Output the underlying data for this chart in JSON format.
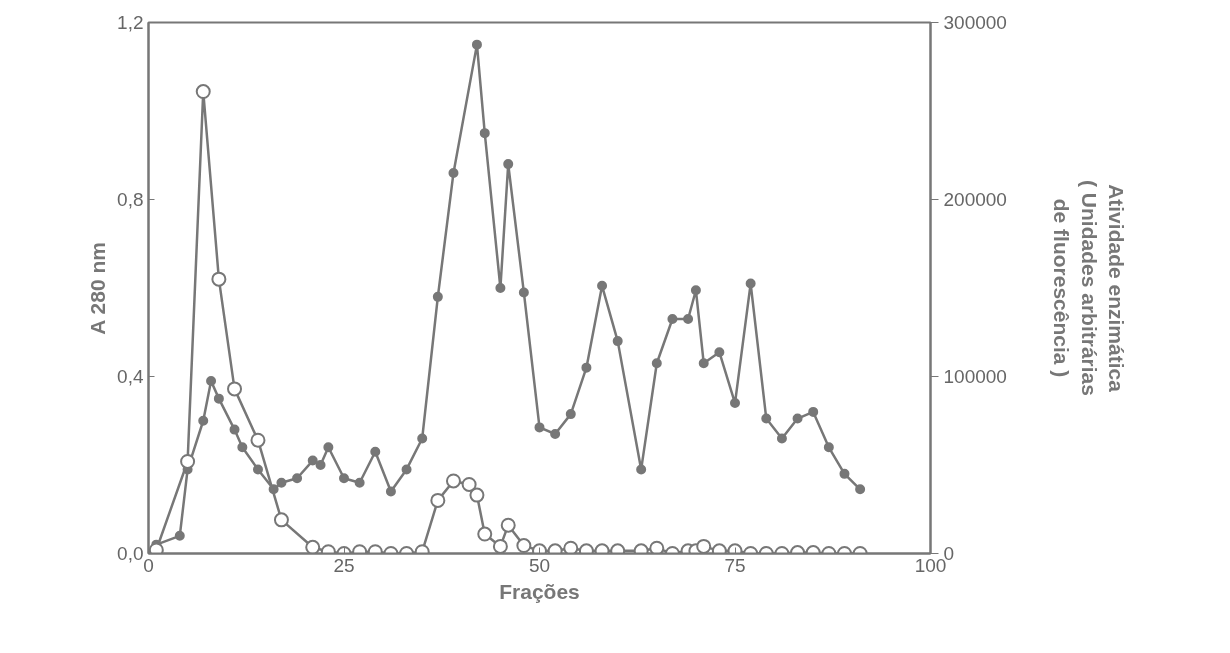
{
  "chart_data": {
    "type": "line",
    "xlabel": "Frações",
    "ylabel": "A 280 nm",
    "y2label": "Atividade enzimática\n( Unidades arbitrárias\nde fluorescência )",
    "xlim": [
      0,
      100
    ],
    "xticks": [
      0,
      25,
      50,
      75,
      100
    ],
    "ylim": [
      0,
      1.2
    ],
    "yticks": [
      {
        "value": 0,
        "label": "0,0"
      },
      {
        "value": 0.4,
        "label": "0,4"
      },
      {
        "value": 0.8,
        "label": "0,8"
      },
      {
        "value": 1.2,
        "label": "1,2"
      }
    ],
    "y2lim": [
      0,
      300000
    ],
    "y2ticks": [
      0,
      100000,
      200000,
      300000
    ],
    "marker": "circle",
    "series": [
      {
        "color": "#777777",
        "x": [
          1,
          4,
          5,
          7,
          8,
          9,
          11,
          12,
          14,
          16,
          17,
          19,
          21,
          22,
          23,
          25,
          27,
          29,
          31,
          33,
          35,
          37,
          39,
          42,
          43,
          45,
          46,
          48,
          50,
          52,
          54,
          56,
          58,
          60,
          63,
          65,
          67,
          69,
          70,
          71,
          73,
          75,
          77,
          79,
          81,
          83,
          85,
          87,
          89,
          91
        ],
        "values": [
          0.02,
          0.04,
          0.19,
          0.3,
          0.39,
          0.35,
          0.28,
          0.24,
          0.19,
          0.145,
          0.16,
          0.17,
          0.21,
          0.2,
          0.24,
          0.17,
          0.16,
          0.23,
          0.14,
          0.19,
          0.26,
          0.58,
          0.86,
          1.15,
          0.95,
          0.6,
          0.88,
          0.59,
          0.285,
          0.27,
          0.315,
          0.42,
          0.605,
          0.48,
          0.19,
          0.43,
          0.53,
          0.53,
          0.595,
          0.43,
          0.455,
          0.34,
          0.61,
          0.305,
          0.26,
          0.305,
          0.32,
          0.24,
          0.18,
          0.145
        ]
      },
      {
        "color": "#777777",
        "axis": "y2",
        "x": [
          1,
          5,
          7,
          9,
          11,
          14,
          17,
          21,
          23,
          25,
          27,
          29,
          31,
          33,
          35,
          37,
          39,
          41,
          42,
          43,
          45,
          46,
          48,
          50,
          52,
          54,
          56,
          58,
          60,
          63,
          65,
          67,
          69,
          70,
          71,
          73,
          75,
          77,
          79,
          81,
          83,
          85,
          87,
          89,
          91
        ],
        "values": [
          2000,
          52000,
          261000,
          155000,
          93000,
          64000,
          19000,
          3500,
          1000,
          0,
          1000,
          1000,
          0,
          0,
          1000,
          30000,
          41000,
          39000,
          33000,
          11000,
          4000,
          16000,
          4500,
          1500,
          1500,
          3000,
          1500,
          1500,
          1500,
          1500,
          3000,
          0,
          1500,
          1500,
          4000,
          1500,
          1500,
          0,
          0,
          0,
          500,
          500,
          0,
          0,
          0
        ]
      }
    ]
  }
}
